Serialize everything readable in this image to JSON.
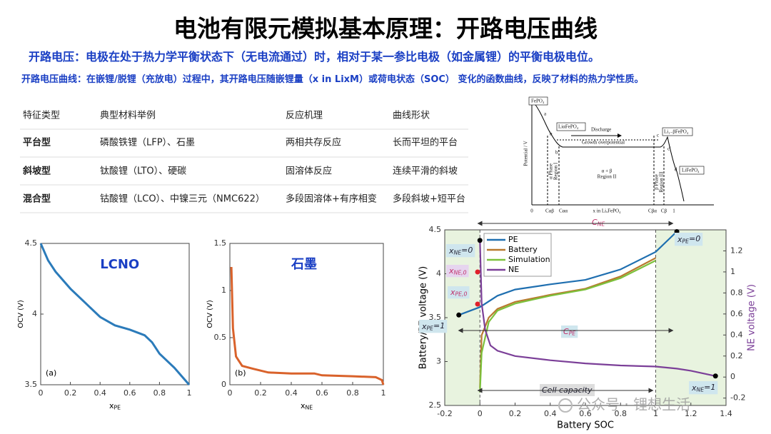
{
  "header": {
    "title": "电池有限元模拟基本原理：开路电压曲线",
    "lines": [
      {
        "term": "开路电压：",
        "text": "电极在处于热力学平衡状态下（无电流通过）时，相对于某一参比电极（如金属锂）的平衡电极电位。"
      },
      {
        "term": "开路电压曲线：",
        "text": "在嵌锂/脱锂（充放电）过程中，其开路电压随嵌锂量（x in LixM）或荷电状态（SOC） 变化的函数曲线，反映了材料的热力学性质。"
      }
    ]
  },
  "table": {
    "header": [
      "特征类型",
      "典型材料举例",
      "反应机理",
      "曲线形状"
    ],
    "rows": [
      [
        "平台型",
        "磷酸铁锂（LFP）、石墨",
        "两相共存反应",
        "长而平坦的平台"
      ],
      [
        "斜坡型",
        "钛酸锂（LTO）、硬碳",
        "固溶体反应",
        "连续平滑的斜坡"
      ],
      [
        "混合型",
        "钴酸锂（LCO）、中镍三元（NMC622）",
        "多段固溶体+有序相变",
        "多段斜坡+短平台"
      ]
    ]
  },
  "diagram": {
    "labels": [
      "FePO₄",
      "a",
      "b",
      "LiαFePO₄",
      "Discharge",
      "Li₁₋βFePO₄",
      "c",
      "b'",
      "Growth overpotential",
      "c'",
      "d",
      "LiFePO₄",
      "Potential / V",
      "α Phase",
      "Region I",
      "α + β",
      "Region II",
      "β Phase",
      "Region III",
      "0",
      "Cαβ",
      "Cαα",
      "x in LiₓFePO₄",
      "Cβα",
      "Cβ",
      "1"
    ]
  },
  "watermark": "公众号 · 锂想生活",
  "chart_data": [
    {
      "type": "line",
      "label": "LCNO",
      "panel": "(a)",
      "x_label": {
        "main": "x",
        "sub": "PE"
      },
      "y_label": "OCV (V)",
      "xlim": [
        0,
        1
      ],
      "ylim": [
        3.5,
        4.5
      ],
      "xticks": [
        0,
        0.2,
        0.4,
        0.6,
        0.8,
        1
      ],
      "yticks": [
        3.5,
        4,
        4.5
      ],
      "series": [
        {
          "color": "#2b7bba",
          "x": [
            0,
            0.05,
            0.1,
            0.2,
            0.3,
            0.4,
            0.5,
            0.6,
            0.7,
            0.75,
            0.8,
            0.9,
            1
          ],
          "values": [
            4.5,
            4.38,
            4.3,
            4.18,
            4.08,
            3.98,
            3.92,
            3.89,
            3.85,
            3.8,
            3.72,
            3.62,
            3.5
          ]
        }
      ]
    },
    {
      "type": "line",
      "label": "石墨",
      "panel": "(b)",
      "x_label": {
        "main": "x",
        "sub": "NE"
      },
      "y_label": "OCV (V)",
      "xlim": [
        0,
        1
      ],
      "ylim": [
        0,
        1.5
      ],
      "xticks": [
        0,
        0.2,
        0.4,
        0.6,
        0.8,
        1
      ],
      "yticks": [
        0,
        0.5,
        1,
        1.5
      ],
      "series": [
        {
          "color": "#d9622b",
          "x": [
            0.01,
            0.02,
            0.04,
            0.08,
            0.15,
            0.25,
            0.4,
            0.55,
            0.6,
            0.8,
            0.95,
            0.99,
            1
          ],
          "values": [
            1.25,
            0.6,
            0.3,
            0.2,
            0.17,
            0.13,
            0.12,
            0.12,
            0.1,
            0.09,
            0.08,
            0.05,
            0
          ]
        }
      ]
    },
    {
      "type": "line",
      "x_label": "Battery SOC",
      "y_label": "Battery/PE voltage (V)",
      "y2_label": "NE voltage (V)",
      "legend": "upper left",
      "xlim": [
        -0.2,
        1.4
      ],
      "ylim": [
        2.5,
        4.5
      ],
      "y2lim": [
        -0.27,
        1.4
      ],
      "xticks": [
        -0.2,
        0,
        0.2,
        0.4,
        0.6,
        0.8,
        1,
        1.2,
        1.4
      ],
      "yticks": [
        2.5,
        3,
        3.5,
        4,
        4.5
      ],
      "y2ticks": [
        -0.2,
        0,
        0.2,
        0.4,
        0.6,
        0.8,
        1,
        1.2
      ],
      "series": [
        {
          "name": "PE",
          "color": "#1f6fb0",
          "x": [
            -0.12,
            0,
            0.1,
            0.2,
            0.4,
            0.6,
            0.8,
            1,
            1.12
          ],
          "values": [
            3.53,
            3.62,
            3.75,
            3.82,
            3.88,
            3.93,
            4.05,
            4.25,
            4.48
          ]
        },
        {
          "name": "Battery",
          "color": "#b8792e",
          "x": [
            0,
            0.01,
            0.05,
            0.1,
            0.2,
            0.4,
            0.6,
            0.8,
            1
          ],
          "values": [
            2.7,
            3.3,
            3.5,
            3.6,
            3.68,
            3.76,
            3.83,
            3.97,
            4.18
          ]
        },
        {
          "name": "Simulation",
          "color": "#7cc13c",
          "x": [
            0,
            0.01,
            0.05,
            0.1,
            0.2,
            0.4,
            0.6,
            0.8,
            1
          ],
          "values": [
            2.65,
            3.1,
            3.45,
            3.58,
            3.66,
            3.75,
            3.82,
            3.95,
            4.15
          ]
        },
        {
          "name": "NE",
          "color": "#7b3f98",
          "axis": "y2",
          "x": [
            0,
            0.01,
            0.03,
            0.06,
            0.1,
            0.2,
            0.4,
            0.6,
            0.8,
            1,
            1.12,
            1.2,
            1.34
          ],
          "values": [
            1.3,
            0.7,
            0.45,
            0.3,
            0.25,
            0.2,
            0.16,
            0.13,
            0.11,
            0.1,
            0.08,
            0.06,
            0.01
          ]
        }
      ],
      "annotations": [
        {
          "main": "x",
          "sub": "NE",
          "tail": "=0"
        },
        {
          "main": "x",
          "sub": "NE,0"
        },
        {
          "main": "x",
          "sub": "PE,0"
        },
        {
          "main": "x",
          "sub": "PE",
          "tail": "=1"
        },
        {
          "main": "x",
          "sub": "PE",
          "tail": "=0"
        },
        {
          "main": "x",
          "sub": "NE",
          "tail": "=1"
        },
        {
          "main": "C",
          "sub": "NE"
        },
        {
          "main": "C",
          "sub": "PE"
        },
        {
          "main": "Cell capacity"
        }
      ]
    }
  ]
}
